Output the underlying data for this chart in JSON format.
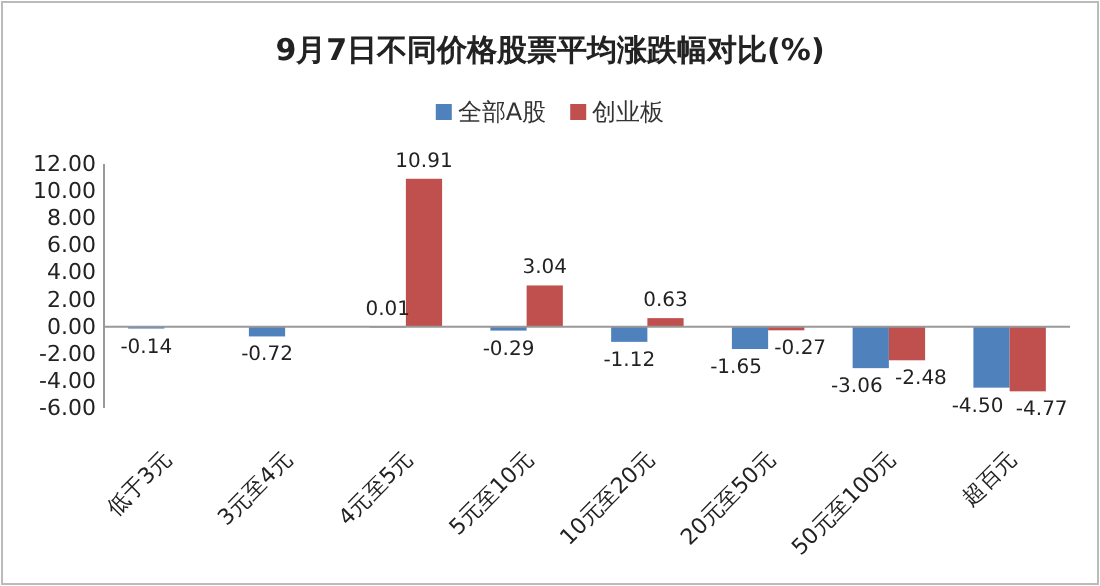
{
  "chart_data": {
    "type": "bar",
    "title": "9月7日不同价格股票平均涨跌幅对比(%)",
    "categories": [
      "低于3元",
      "3元至4元",
      "4元至5元",
      "5元至10元",
      "10元至20元",
      "20元至50元",
      "50元至100元",
      "超百元"
    ],
    "series": [
      {
        "name": "全部A股",
        "color": "#4f81bd",
        "values": [
          -0.14,
          -0.72,
          0.01,
          -0.29,
          -1.12,
          -1.65,
          -3.06,
          -4.5
        ],
        "value_labels": [
          "-0.14",
          "-0.72",
          "0.01",
          "-0.29",
          "-1.12",
          "-1.65",
          "-3.06",
          "-4.50"
        ]
      },
      {
        "name": "创业板",
        "color": "#c0504d",
        "values": [
          null,
          null,
          10.91,
          3.04,
          0.63,
          -0.27,
          -2.48,
          -4.77
        ],
        "value_labels": [
          null,
          null,
          "10.91",
          "3.04",
          "0.63",
          "-0.27",
          "-2.48",
          "-4.77"
        ]
      }
    ],
    "ylim": [
      -6,
      12
    ],
    "yticks": [
      {
        "value": -6,
        "label": "-6.00"
      },
      {
        "value": -4,
        "label": "-4.00"
      },
      {
        "value": -2,
        "label": "-2.00"
      },
      {
        "value": 0,
        "label": "0.00"
      },
      {
        "value": 2,
        "label": "2.00"
      },
      {
        "value": 4,
        "label": "4.00"
      },
      {
        "value": 6,
        "label": "6.00"
      },
      {
        "value": 8,
        "label": "8.00"
      },
      {
        "value": 10,
        "label": "10.00"
      },
      {
        "value": 12,
        "label": "12.00"
      }
    ],
    "data_labels": true,
    "legend": "top"
  }
}
